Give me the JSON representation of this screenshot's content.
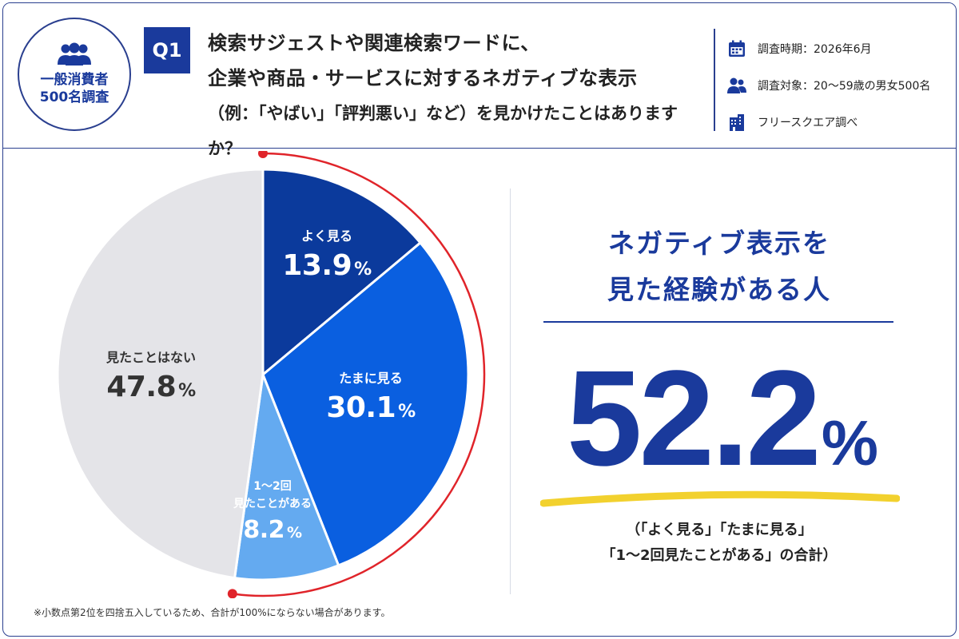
{
  "badge": {
    "line1": "一般消費者",
    "line2": "500名調査"
  },
  "question": {
    "label": "Q1",
    "line1": "検索サジェストや関連検索ワードに、",
    "line2": "企業や商品・サービスに対するネガティブな表示",
    "line3": "（例：「やばい」「評判悪い」など）を見かけたことはありますか？"
  },
  "meta": {
    "period": "調査時期：2026年6月",
    "target": "調査対象：20〜59歳の男女500名",
    "source": "フリースクエア調べ"
  },
  "chart_data": {
    "type": "pie",
    "start_angle": 0,
    "direction": "clockwise",
    "slices": [
      {
        "label": "よく見る",
        "value": 13.9,
        "value_text": "13.9",
        "color": "#0b3a9c",
        "text_color": "#ffffff"
      },
      {
        "label": "たまに見る",
        "value": 30.1,
        "value_text": "30.1",
        "color": "#0a5fe0",
        "text_color": "#ffffff"
      },
      {
        "label_line1": "1〜2回",
        "label_line2": "見たことがある",
        "value": 8.2,
        "value_text": "8.2",
        "color": "#64aaf0",
        "text_color": "#ffffff"
      },
      {
        "label": "見たことはない",
        "value": 47.8,
        "value_text": "47.8",
        "color": "#e4e4e8",
        "text_color": "#333333"
      }
    ],
    "unit": "%",
    "highlight_arc": {
      "covers": [
        "よく見る",
        "たまに見る",
        "1〜2回見たことがある"
      ],
      "color": "#e0242a"
    }
  },
  "summary": {
    "title_line1": "ネガティブ表示を",
    "title_line2": "見た経験がある人",
    "value": "52.2",
    "unit": "%",
    "note_line1": "（「よく見る」「たまに見る」",
    "note_line2": "「1〜2回見たことがある」の合計）",
    "accent_color": "#1a3a9c",
    "underline_color": "#f2d12e"
  },
  "footnote": "※小数点第2位を四捨五入しているため、合計が100%にならない場合があります。"
}
